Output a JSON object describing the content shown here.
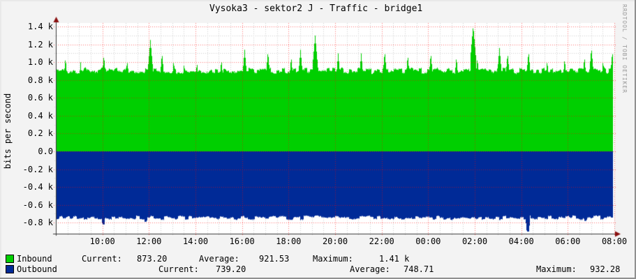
{
  "title": "Vysoka3 - sektor2 J - Traffic - bridge1",
  "ylabel": "bits per second",
  "watermark": "RRDTOOL / TOBI OETIKER",
  "legend": {
    "stat_labels": {
      "current": "Current:",
      "average": "Average:",
      "maximum": "Maximum:"
    }
  },
  "chart_data": {
    "type": "area",
    "title": "Vysoka3 - sektor2 J - Traffic - bridge1",
    "xlabel": "",
    "ylabel": "bits per second",
    "x_start_label": "08:00",
    "x_span_hours": 24,
    "ylim_k": [
      -0.9,
      1.45
    ],
    "grid": {
      "on": true,
      "major_color": "#ff0000",
      "minor_color": "#cfcfcf",
      "canvas": "#ffffff",
      "background": "#f3f3f3"
    },
    "axis_color": "#3a3a3a",
    "arrow_color": "#8a1010",
    "y_ticks": {
      "labels": [
        "1.4 k",
        "1.2 k",
        "1.0 k",
        "0.8 k",
        "0.6 k",
        "0.4 k",
        "0.2 k",
        "0.0",
        "-0.2 k",
        "-0.4 k",
        "-0.6 k",
        "-0.8 k"
      ],
      "values_k": [
        1.4,
        1.2,
        1.0,
        0.8,
        0.6,
        0.4,
        0.2,
        0.0,
        -0.2,
        -0.4,
        -0.6,
        -0.8
      ]
    },
    "x_ticks": {
      "labels": [
        "10:00",
        "12:00",
        "14:00",
        "16:00",
        "18:00",
        "20:00",
        "22:00",
        "00:00",
        "02:00",
        "04:00",
        "06:00",
        "08:00"
      ],
      "hours": [
        2,
        4,
        6,
        8,
        10,
        12,
        14,
        16,
        18,
        20,
        22,
        24
      ]
    },
    "series": [
      {
        "name": "Inbound",
        "color": "#00cf00",
        "sign": 1,
        "baseline_k": 0.905,
        "noise_k": 0.03,
        "spikes_h_peak_k": [
          [
            0.4,
            1.05
          ],
          [
            1.05,
            1.0
          ],
          [
            2.05,
            1.08
          ],
          [
            3.05,
            1.02
          ],
          [
            4.05,
            1.25
          ],
          [
            4.55,
            1.1
          ],
          [
            5.05,
            1.02
          ],
          [
            5.5,
            0.99
          ],
          [
            6.05,
            1.0
          ],
          [
            7.1,
            1.03
          ],
          [
            8.1,
            1.14
          ],
          [
            9.1,
            1.12
          ],
          [
            10.1,
            1.06
          ],
          [
            10.5,
            1.14
          ],
          [
            11.13,
            1.3
          ],
          [
            12.12,
            1.1
          ],
          [
            13.11,
            1.1
          ],
          [
            14.12,
            1.12
          ],
          [
            15.11,
            1.08
          ],
          [
            16.1,
            1.1
          ],
          [
            17.2,
            1.06
          ],
          [
            17.92,
            1.41
          ],
          [
            18.1,
            1.05
          ],
          [
            19.05,
            1.16
          ],
          [
            19.4,
            1.1
          ],
          [
            20.3,
            1.12
          ],
          [
            21.1,
            1.02
          ],
          [
            21.85,
            1.04
          ],
          [
            22.7,
            1.06
          ],
          [
            23.0,
            1.16
          ],
          [
            23.5,
            1.02
          ],
          [
            23.9,
            1.12
          ]
        ],
        "stats": {
          "current": "873.20",
          "average": "921.53",
          "maximum": "1.41 k"
        }
      },
      {
        "name": "Outbound",
        "color": "#002a97",
        "sign": -1,
        "baseline_k": -0.745,
        "noise_k": 0.022,
        "dips_h_v_k": [
          [
            2.03,
            -0.82
          ],
          [
            3.85,
            -0.79
          ],
          [
            20.27,
            -0.9
          ],
          [
            22.75,
            -0.78
          ]
        ],
        "stats": {
          "current": "739.20",
          "average": "748.71",
          "maximum": "932.28"
        }
      }
    ]
  }
}
